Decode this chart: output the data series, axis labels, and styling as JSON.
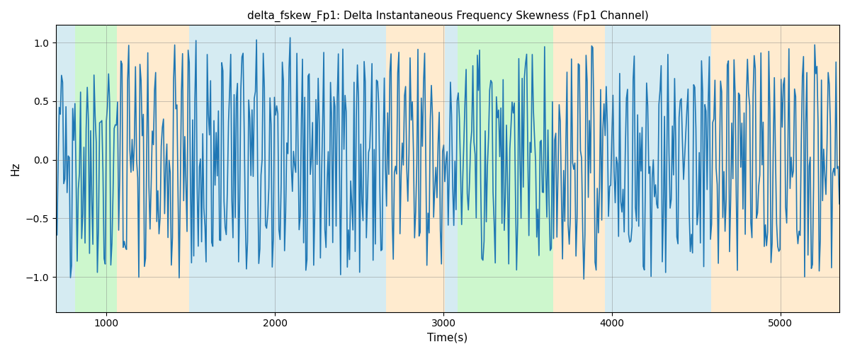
{
  "title": "delta_fskew_Fp1: Delta Instantaneous Frequency Skewness (Fp1 Channel)",
  "xlabel": "Time(s)",
  "ylabel": "Hz",
  "xlim": [
    700,
    5350
  ],
  "ylim": [
    -1.3,
    1.15
  ],
  "yticks": [
    -1.0,
    -0.5,
    0.0,
    0.5,
    1.0
  ],
  "xticks": [
    1000,
    2000,
    3000,
    4000,
    5000
  ],
  "line_color": "#1f77b4",
  "line_width": 1.2,
  "bg_regions": [
    {
      "xmin": 700,
      "xmax": 815,
      "color": "#add8e6",
      "alpha": 0.5
    },
    {
      "xmin": 815,
      "xmax": 1060,
      "color": "#90ee90",
      "alpha": 0.45
    },
    {
      "xmin": 1060,
      "xmax": 1490,
      "color": "#ffd9a0",
      "alpha": 0.5
    },
    {
      "xmin": 1490,
      "xmax": 1615,
      "color": "#add8e6",
      "alpha": 0.5
    },
    {
      "xmin": 1615,
      "xmax": 1640,
      "color": "#add8e6",
      "alpha": 0.5
    },
    {
      "xmin": 1640,
      "xmax": 2660,
      "color": "#add8e6",
      "alpha": 0.5
    },
    {
      "xmin": 2660,
      "xmax": 2760,
      "color": "#ffd9a0",
      "alpha": 0.5
    },
    {
      "xmin": 2760,
      "xmax": 3010,
      "color": "#ffd9a0",
      "alpha": 0.5
    },
    {
      "xmin": 3010,
      "xmax": 3085,
      "color": "#add8e6",
      "alpha": 0.5
    },
    {
      "xmin": 3085,
      "xmax": 3650,
      "color": "#90ee90",
      "alpha": 0.45
    },
    {
      "xmin": 3650,
      "xmax": 3960,
      "color": "#ffd9a0",
      "alpha": 0.5
    },
    {
      "xmin": 3960,
      "xmax": 4590,
      "color": "#add8e6",
      "alpha": 0.5
    },
    {
      "xmin": 4590,
      "xmax": 4755,
      "color": "#ffd9a0",
      "alpha": 0.5
    },
    {
      "xmin": 4755,
      "xmax": 5350,
      "color": "#ffd9a0",
      "alpha": 0.5
    }
  ],
  "seed": 42,
  "t_start": 700,
  "t_end": 5350,
  "figsize": [
    12.0,
    5.0
  ],
  "dpi": 100
}
